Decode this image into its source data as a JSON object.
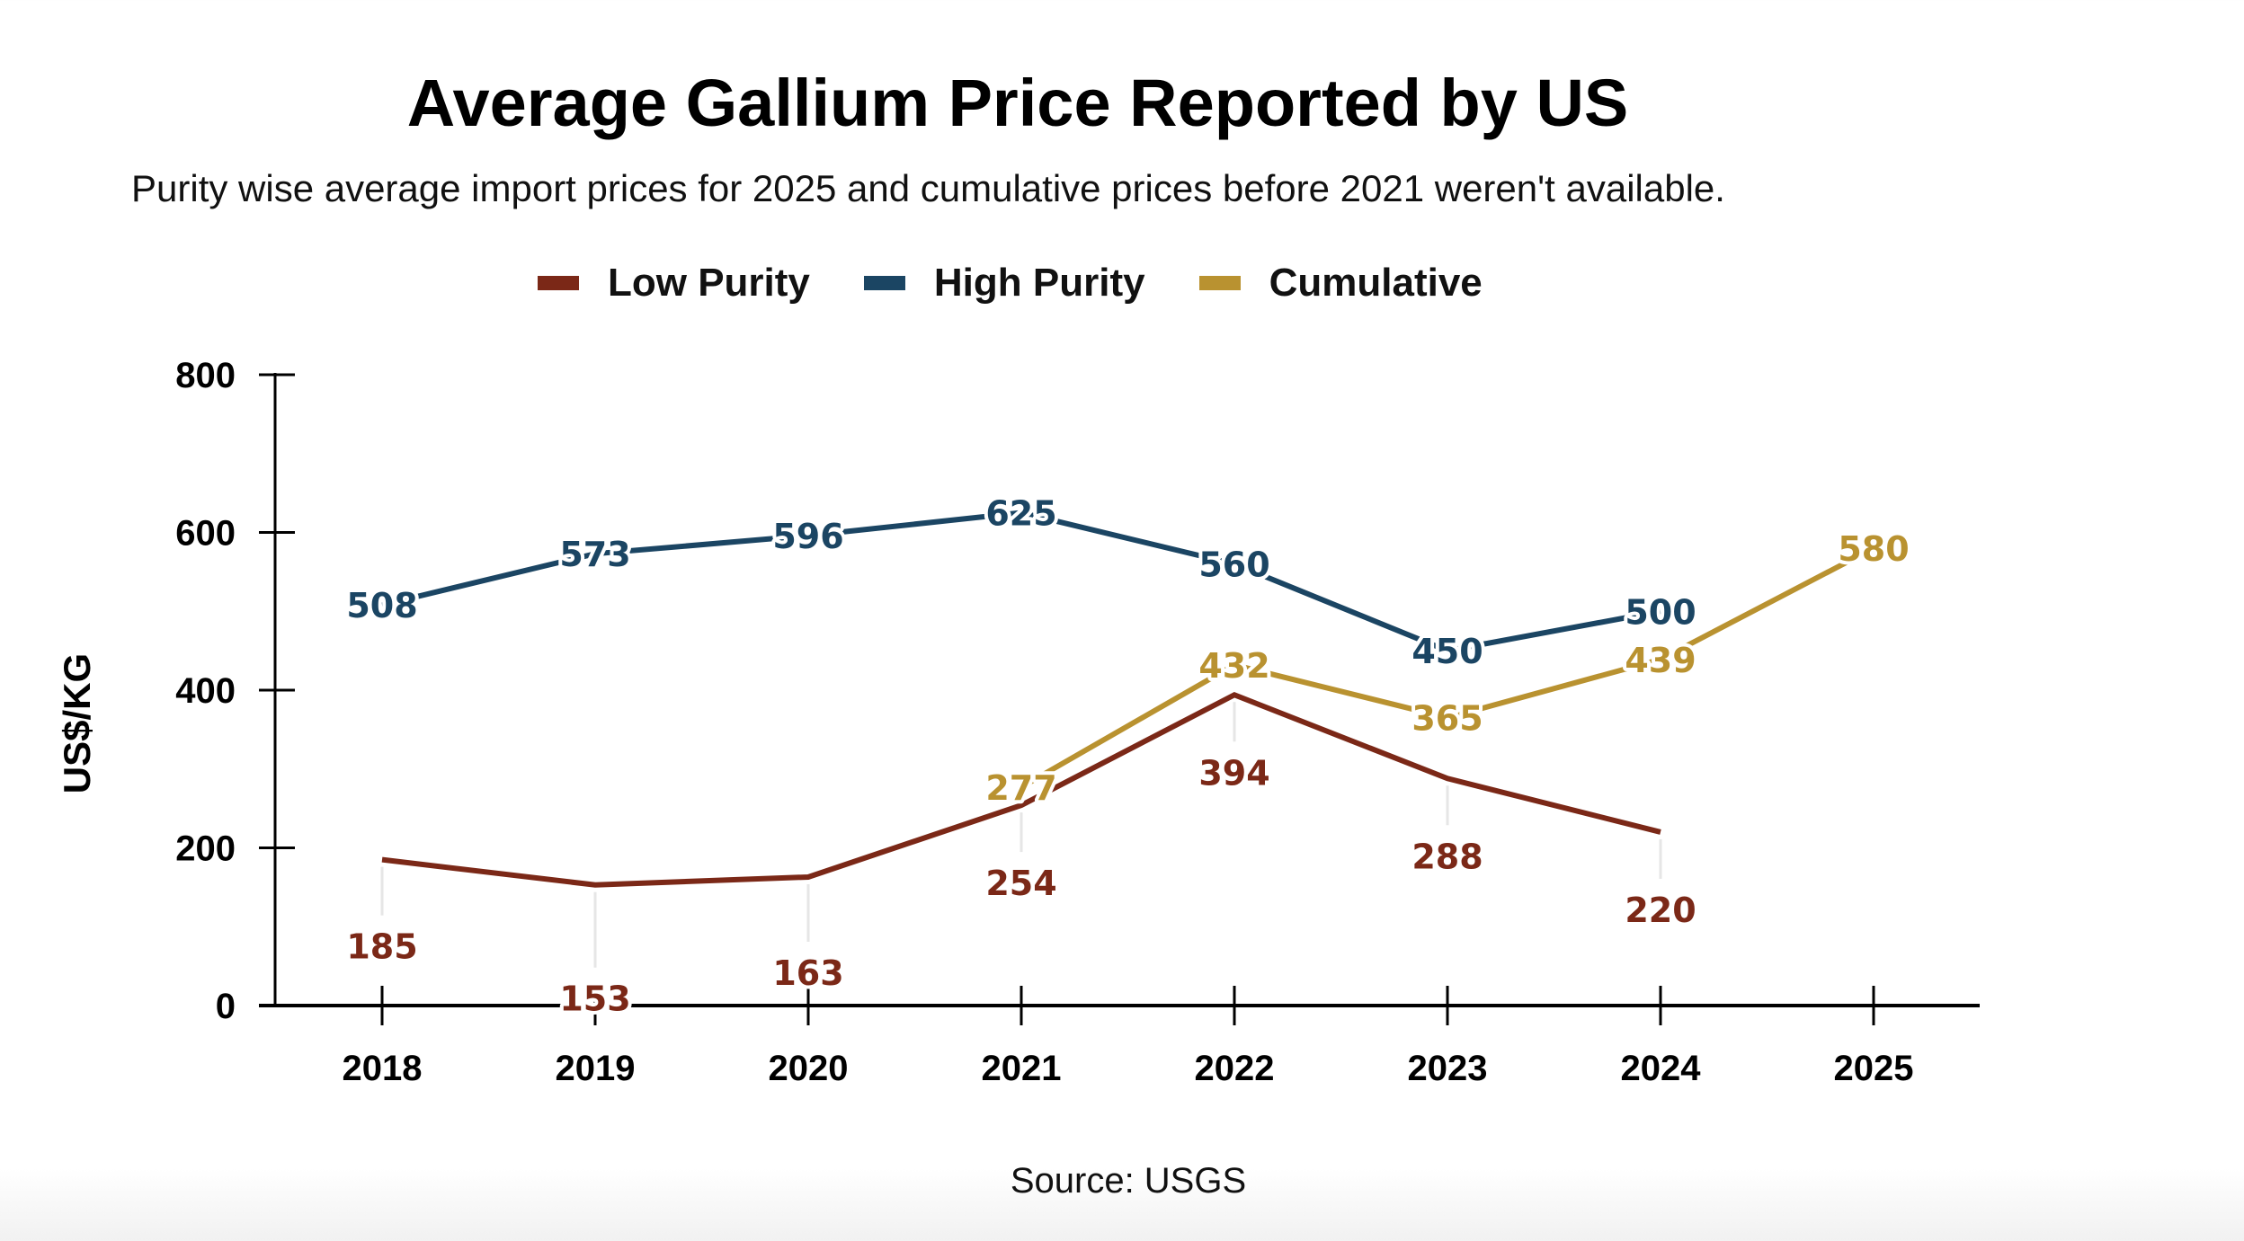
{
  "chart_data": {
    "type": "line",
    "title": "Average Gallium Price Reported by US",
    "subtitle": "Purity wise average import prices for 2025 and cumulative prices before 2021 weren't available.",
    "xlabel": "",
    "ylabel": "US$/KG",
    "source": "Source: USGS",
    "x": [
      "2018",
      "2019",
      "2020",
      "2021",
      "2022",
      "2023",
      "2024",
      "2025"
    ],
    "ylim": [
      0,
      800
    ],
    "yticks": [
      0,
      200,
      400,
      600,
      800
    ],
    "grid": false,
    "legend_position": "top-center",
    "series": [
      {
        "name": "Low Purity",
        "color": "#7b2817",
        "label_position": "below",
        "values": [
          185,
          153,
          163,
          254,
          394,
          288,
          220,
          null
        ]
      },
      {
        "name": "High Purity",
        "color": "#1b4563",
        "label_position": "center",
        "values": [
          508,
          573,
          596,
          625,
          560,
          450,
          500,
          null
        ]
      },
      {
        "name": "Cumulative",
        "color": "#b99230",
        "label_position": "center",
        "values": [
          null,
          null,
          null,
          277,
          432,
          365,
          439,
          580
        ]
      }
    ]
  }
}
